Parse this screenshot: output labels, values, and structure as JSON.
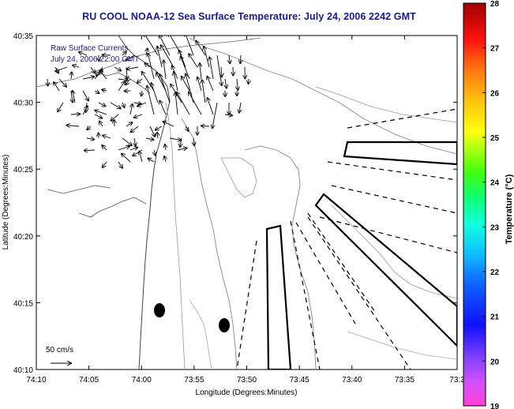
{
  "title": "RU COOL  NOAA-12  Sea Surface Temperature:  July 24, 2006 2242 GMT",
  "map": {
    "xlabel": "Longitude (Degrees:Minutes)",
    "ylabel": "Latitude (Degrees:Minutes)",
    "x_ticks": [
      "74:10",
      "74:05",
      "74:00",
      "73:55",
      "73:50",
      "73:45",
      "73:40",
      "73:35",
      "73:3"
    ],
    "y_ticks": [
      "40:35",
      "40:30",
      "40:25",
      "40:20",
      "40:15",
      "40:10"
    ],
    "annotation_line1": "Raw Surface Currents",
    "annotation_line2": "July 24, 2006 22:00 GMT",
    "scale_label": "50 cm/s"
  },
  "colorbar": {
    "label": "Temperature (°C)",
    "ticks": [
      "28",
      "27",
      "26",
      "25",
      "24",
      "23",
      "22",
      "21",
      "20",
      "19"
    ],
    "range": [
      19,
      28
    ]
  }
}
